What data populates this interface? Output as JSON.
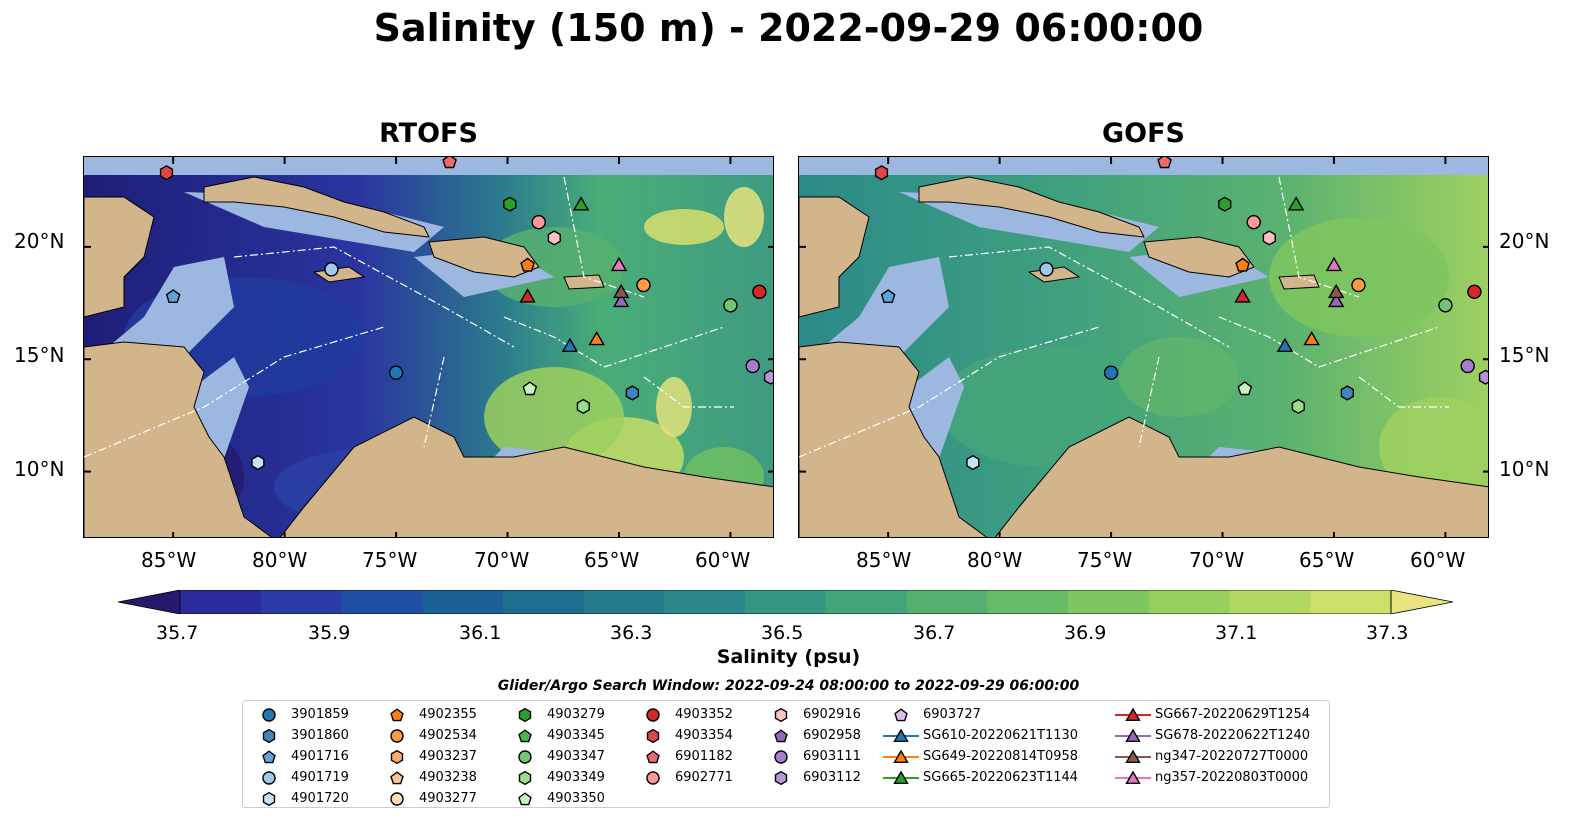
{
  "title": "Salinity (150 m) - 2022-09-29 06:00:00",
  "panels": [
    {
      "title": "RTOFS",
      "key": "rtofs"
    },
    {
      "title": "GOFS",
      "key": "gofs"
    }
  ],
  "lat_labels": [
    "20°N",
    "15°N",
    "10°N"
  ],
  "lon_labels": [
    "85°W",
    "80°W",
    "75°W",
    "70°W",
    "65°W",
    "60°W"
  ],
  "colorbar": {
    "label": "Salinity (psu)",
    "ticks": [
      "35.7",
      "35.9",
      "36.1",
      "36.3",
      "36.5",
      "36.7",
      "36.9",
      "37.1",
      "37.3"
    ],
    "colors": [
      "#25196b",
      "#2a2b9c",
      "#2a3ba8",
      "#1f4ea3",
      "#1a5f96",
      "#1e6d8f",
      "#257a8b",
      "#2c8888",
      "#359682",
      "#42a47a",
      "#55b06f",
      "#68bb66",
      "#7ec65f",
      "#96cf5d",
      "#b1d860",
      "#cddf6b",
      "#e8e37e"
    ]
  },
  "search_window": "Glider/Argo Search Window: 2022-09-24 08:00:00 to 2022-09-29 06:00:00",
  "legend": [
    {
      "label": "3901859",
      "shape": "circle",
      "color": "#1f77b4"
    },
    {
      "label": "3901860",
      "shape": "hexagon",
      "color": "#3f86c4"
    },
    {
      "label": "4901716",
      "shape": "pentagon",
      "color": "#5ea3d8"
    },
    {
      "label": "4901719",
      "shape": "circle",
      "color": "#9ecae9"
    },
    {
      "label": "4901720",
      "shape": "hexagon",
      "color": "#c6e3f5"
    },
    {
      "label": "4902355",
      "shape": "pentagon",
      "color": "#ff7f0e"
    },
    {
      "label": "4902534",
      "shape": "circle",
      "color": "#fd9a40"
    },
    {
      "label": "4903237",
      "shape": "hexagon",
      "color": "#fdae6b"
    },
    {
      "label": "4903238",
      "shape": "pentagon",
      "color": "#fdc690"
    },
    {
      "label": "4903277",
      "shape": "circle",
      "color": "#fedcb8"
    },
    {
      "label": "4903279",
      "shape": "hexagon",
      "color": "#2ca02c"
    },
    {
      "label": "4903345",
      "shape": "pentagon",
      "color": "#48b84a"
    },
    {
      "label": "4903347",
      "shape": "circle",
      "color": "#74c476"
    },
    {
      "label": "4903349",
      "shape": "hexagon",
      "color": "#98df8a"
    },
    {
      "label": "4903350",
      "shape": "pentagon",
      "color": "#c7f2c0"
    },
    {
      "label": "4903352",
      "shape": "circle",
      "color": "#d62728"
    },
    {
      "label": "4903354",
      "shape": "hexagon",
      "color": "#e04646"
    },
    {
      "label": "6901182",
      "shape": "pentagon",
      "color": "#ec6a6a"
    },
    {
      "label": "6902771",
      "shape": "circle",
      "color": "#ff9896"
    },
    {
      "label": "6902916",
      "shape": "hexagon",
      "color": "#ffc2c0"
    },
    {
      "label": "6902958",
      "shape": "pentagon",
      "color": "#9467bd"
    },
    {
      "label": "6903111",
      "shape": "circle",
      "color": "#a87dd0"
    },
    {
      "label": "6903112",
      "shape": "hexagon",
      "color": "#b894d6"
    },
    {
      "label": "6903727",
      "shape": "pentagon",
      "color": "#d6c1ee"
    },
    {
      "label": "SG610-20220621T1130",
      "shape": "triangle",
      "color": "#1f77b4",
      "line": true
    },
    {
      "label": "SG649-20220814T0958",
      "shape": "triangle",
      "color": "#ff7f0e",
      "line": true
    },
    {
      "label": "SG665-20220623T1144",
      "shape": "triangle",
      "color": "#2ca02c",
      "line": true
    },
    {
      "label": "SG667-20220629T1254",
      "shape": "triangle",
      "color": "#d62728",
      "line": true
    },
    {
      "label": "SG678-20220622T1240",
      "shape": "triangle",
      "color": "#9467bd",
      "line": true
    },
    {
      "label": "ng347-20220727T0000",
      "shape": "triangle",
      "color": "#8c564b",
      "line": true
    },
    {
      "label": "ng357-20220803T0000",
      "shape": "triangle",
      "color": "#e377c2",
      "line": true
    }
  ],
  "markers": [
    {
      "shape": "circle",
      "color": "#1f77b4",
      "lon": -75.0,
      "lat": 14.4
    },
    {
      "shape": "hexagon",
      "color": "#3f86c4",
      "lon": -64.4,
      "lat": 13.5
    },
    {
      "shape": "pentagon",
      "color": "#5ea3d8",
      "lon": -85.0,
      "lat": 17.8
    },
    {
      "shape": "circle",
      "color": "#9ecae9",
      "lon": -77.9,
      "lat": 19.0
    },
    {
      "shape": "hexagon",
      "color": "#c6e3f5",
      "lon": -81.2,
      "lat": 10.4
    },
    {
      "shape": "pentagon",
      "color": "#ff7f0e",
      "lon": -69.1,
      "lat": 19.2
    },
    {
      "shape": "circle",
      "color": "#fd9a40",
      "lon": -63.9,
      "lat": 18.3
    },
    {
      "shape": "circle",
      "color": "#ff9896",
      "lon": -68.6,
      "lat": 21.1
    },
    {
      "shape": "hexagon",
      "color": "#ffc2c0",
      "lon": -67.9,
      "lat": 20.4
    },
    {
      "shape": "hexagon",
      "color": "#2ca02c",
      "lon": -69.9,
      "lat": 21.9
    },
    {
      "shape": "circle",
      "color": "#74c476",
      "lon": -60.0,
      "lat": 17.4
    },
    {
      "shape": "hexagon",
      "color": "#98df8a",
      "lon": -66.6,
      "lat": 12.9
    },
    {
      "shape": "pentagon",
      "color": "#c7f2c0",
      "lon": -69.0,
      "lat": 13.7
    },
    {
      "shape": "circle",
      "color": "#d62728",
      "lon": -58.7,
      "lat": 18.0
    },
    {
      "shape": "hexagon",
      "color": "#e04646",
      "lon": -85.3,
      "lat": 23.3
    },
    {
      "shape": "pentagon",
      "color": "#ec6a6a",
      "lon": -72.6,
      "lat": 23.8
    },
    {
      "shape": "circle",
      "color": "#a87dd0",
      "lon": -59.0,
      "lat": 14.7
    },
    {
      "shape": "hexagon",
      "color": "#b894d6",
      "lon": -58.2,
      "lat": 14.2
    },
    {
      "shape": "triangle",
      "color": "#1f77b4",
      "lon": -67.2,
      "lat": 15.6
    },
    {
      "shape": "triangle",
      "color": "#ff7f0e",
      "lon": -66.0,
      "lat": 15.9
    },
    {
      "shape": "triangle",
      "color": "#2ca02c",
      "lon": -66.7,
      "lat": 21.9
    },
    {
      "shape": "triangle",
      "color": "#d62728",
      "lon": -69.1,
      "lat": 17.8
    },
    {
      "shape": "triangle",
      "color": "#9467bd",
      "lon": -64.9,
      "lat": 17.6
    },
    {
      "shape": "triangle",
      "color": "#8c564b",
      "lon": -64.9,
      "lat": 18.0
    },
    {
      "shape": "triangle",
      "color": "#e377c2",
      "lon": -65.0,
      "lat": 19.2
    }
  ]
}
